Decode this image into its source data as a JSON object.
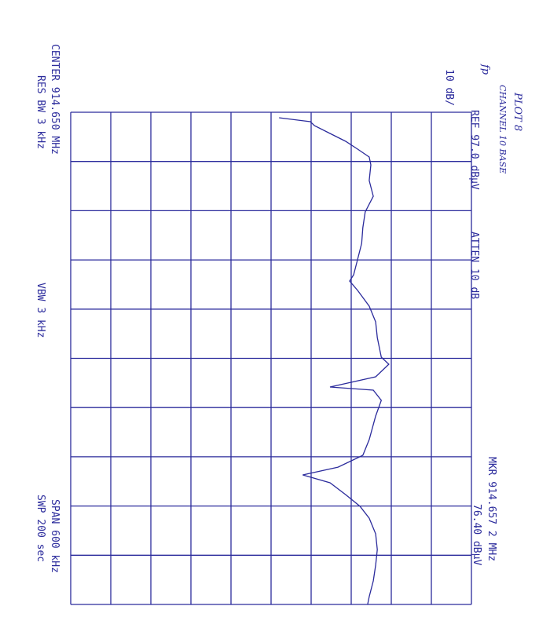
{
  "chart_data": {
    "type": "line",
    "title": "PLOT 8",
    "subtitle": "CHANNEL 10 BASE",
    "annotations": [
      "fp",
      "REF 97.0 dBµV",
      "ATTEN 10 dB",
      "10 dB/",
      "MKR 914.657 2 MHz",
      "76.40 dBµV",
      "CENTER 914.650 MHz",
      "RES BW 3 kHz",
      "VBW 3 kHz",
      "SPAN 600 kHz",
      "SWP 200 sec"
    ],
    "x": [
      914.3567,
      914.3615,
      914.3663,
      914.3758,
      914.3854,
      914.395,
      914.4045,
      914.4141,
      914.4333,
      914.4524,
      914.4715,
      914.4907,
      914.5098,
      914.529,
      914.5481,
      914.5558,
      914.5672,
      914.5864,
      914.6055,
      914.6246,
      914.6486,
      914.6572,
      914.6725,
      914.6849,
      914.6888,
      914.7012,
      914.7203,
      914.749,
      914.7682,
      914.7826,
      914.7921,
      914.8017,
      914.8161,
      914.8304,
      914.8448,
      914.8639,
      914.8831,
      914.9022,
      914.9213,
      914.9405,
      914.95
    ],
    "series": [
      {
        "color": "#2b2b9c",
        "values": [
          49.0,
          56.8,
          57.8,
          61.7,
          65.6,
          68.6,
          71.5,
          71.9,
          71.5,
          72.5,
          70.5,
          69.9,
          69.6,
          68.6,
          67.6,
          66.6,
          68.6,
          71.5,
          73.1,
          73.5,
          74.5,
          76.4,
          73.1,
          61.7,
          72.5,
          74.5,
          73.1,
          71.5,
          69.9,
          63.7,
          54.9,
          61.7,
          65.6,
          69.2,
          71.5,
          73.1,
          73.5,
          73.1,
          72.5,
          71.5,
          71.1
        ]
      }
    ],
    "xlim": [
      914.35,
      914.95
    ],
    "xticks": [
      914.35,
      914.41,
      914.47,
      914.53,
      914.59,
      914.65,
      914.71,
      914.77,
      914.83,
      914.89,
      914.95
    ],
    "ylim": [
      -3,
      97
    ],
    "yticks": [
      -3,
      7,
      17,
      27,
      37,
      47,
      57,
      67,
      77,
      87,
      97
    ],
    "grid": true
  }
}
